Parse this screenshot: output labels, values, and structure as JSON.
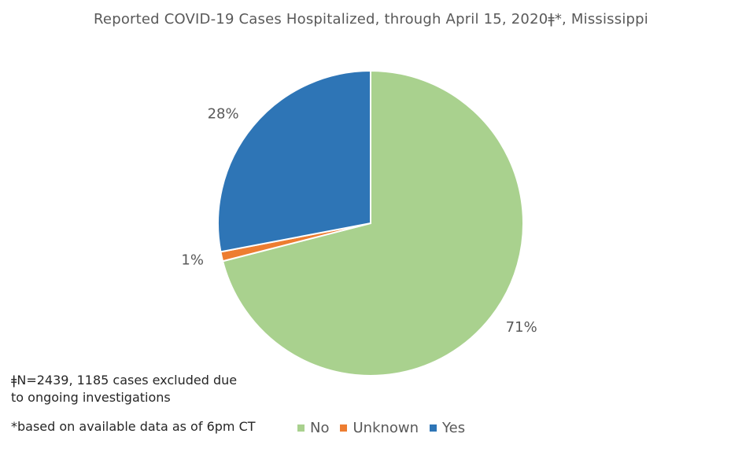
{
  "chart_data": {
    "type": "pie",
    "title": "Reported COVID-19 Cases Hospitalized, through April 15, 2020ǂ*, Mississippi",
    "categories": [
      "No",
      "Unknown",
      "Yes"
    ],
    "values": [
      71,
      1,
      28
    ],
    "data_labels": [
      "71%",
      "1%",
      "28%"
    ],
    "colors": [
      "#A9D18E",
      "#ED7D31",
      "#2E75B6"
    ],
    "legend_position": "bottom",
    "start_angle_deg": 0,
    "direction": "clockwise"
  },
  "footnotes": {
    "n_note": "ǂN=2439, 1185 cases excluded due to ongoing investigations",
    "data_note": "*based on available data as of 6pm CT"
  }
}
